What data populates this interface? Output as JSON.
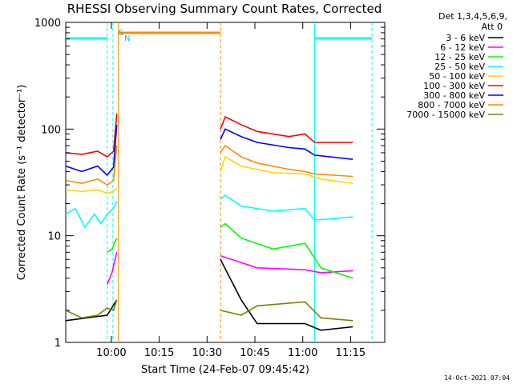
{
  "chart_data": {
    "type": "line",
    "title": "RHESSI Observing Summary Count Rates, Corrected",
    "xlabel": "Start Time (24-Feb-07 09:45:42)",
    "ylabel": "Corrected Count Rate (s⁻¹ detector⁻¹)",
    "y_scale": "log",
    "ylim": [
      1,
      1000
    ],
    "xlim_minutes_from_start": [
      0,
      100
    ],
    "x_tick_labels": [
      "10:00",
      "10:15",
      "10:30",
      "10:45",
      "11:00",
      "11:15"
    ],
    "x_tick_minutes": [
      14.3,
      29.3,
      44.3,
      59.3,
      74.3,
      89.3
    ],
    "y_tick_labels": [
      "1",
      "10",
      "100",
      "1000"
    ],
    "y_tick_values": [
      1,
      10,
      100,
      1000
    ],
    "legend_header": [
      "Det 1,3,4,5,6,9,",
      "Att 0"
    ],
    "legend_position": "right",
    "timestamp": "14-Oct-2021 07:04",
    "markers": {
      "saa_label": "S",
      "night_label": "N"
    },
    "data_gaps_minutes": [
      [
        16.5,
        48.5
      ],
      [
        90.0,
        100
      ]
    ],
    "series": [
      {
        "name": "3 - 6 keV",
        "color": "#000000",
        "x": [
          0,
          13,
          16,
          48.5,
          55,
          60,
          75,
          80,
          90
        ],
        "y": [
          1.6,
          1.8,
          2.5,
          6.0,
          2.5,
          1.5,
          1.5,
          1.3,
          1.4
        ]
      },
      {
        "name": "6 - 12 keV",
        "color": "#ff00ff",
        "x": [
          13,
          14.5,
          16,
          48.5,
          52,
          60,
          75,
          80,
          90
        ],
        "y": [
          3.5,
          4.5,
          7.0,
          6.5,
          6.0,
          5.0,
          4.8,
          4.5,
          4.7
        ]
      },
      {
        "name": "12 - 25 keV",
        "color": "#00ff00",
        "x": [
          13,
          14.5,
          16,
          48.5,
          50,
          55,
          65,
          75,
          80,
          90
        ],
        "y": [
          7.0,
          7.5,
          9.5,
          12,
          13,
          9.5,
          7.5,
          8.5,
          5.0,
          4.0
        ]
      },
      {
        "name": "25 - 50 keV",
        "color": "#00ffff",
        "x": [
          0,
          3,
          6,
          9,
          11,
          13,
          15,
          16,
          48.5,
          50,
          55,
          65,
          75,
          78,
          90
        ],
        "y": [
          16,
          18,
          12,
          16,
          13,
          16,
          18,
          21,
          22,
          24,
          19,
          17,
          18,
          14,
          15
        ]
      },
      {
        "name": "50 - 100 keV",
        "color": "#ffd700",
        "x": [
          0,
          5,
          10,
          13,
          15,
          16,
          48.5,
          50,
          55,
          65,
          75,
          80,
          90
        ],
        "y": [
          27,
          26,
          27,
          25,
          26,
          28,
          40,
          55,
          45,
          39,
          38,
          34,
          31
        ]
      },
      {
        "name": "100 - 300 keV",
        "color": "#ff0000",
        "x": [
          0,
          5,
          10,
          13,
          15,
          16,
          48.5,
          50,
          55,
          60,
          70,
          75,
          78,
          90
        ],
        "y": [
          60,
          58,
          62,
          55,
          62,
          140,
          100,
          130,
          110,
          95,
          85,
          90,
          75,
          75
        ]
      },
      {
        "name": "300 - 800 keV",
        "color": "#0000ff",
        "x": [
          0,
          5,
          10,
          13,
          15,
          16,
          48.5,
          50,
          55,
          60,
          70,
          75,
          78,
          90
        ],
        "y": [
          45,
          40,
          45,
          37,
          44,
          110,
          80,
          100,
          85,
          75,
          67,
          65,
          57,
          52
        ]
      },
      {
        "name": "800 - 7000 keV",
        "color": "#ff8c00",
        "x": [
          0,
          5,
          10,
          13,
          15,
          16,
          48.5,
          50,
          55,
          60,
          70,
          75,
          78,
          90
        ],
        "y": [
          33,
          31,
          34,
          30,
          33,
          70,
          60,
          70,
          55,
          48,
          42,
          40,
          38,
          36
        ]
      },
      {
        "name": "7000 - 15000 keV",
        "color": "#808000",
        "x": [
          0,
          5,
          10,
          13,
          15,
          16,
          48.5,
          55,
          60,
          75,
          80,
          90
        ],
        "y": [
          2.0,
          1.7,
          1.8,
          2.1,
          2.0,
          2.5,
          2.0,
          1.8,
          2.2,
          2.4,
          1.7,
          1.6
        ]
      }
    ]
  }
}
